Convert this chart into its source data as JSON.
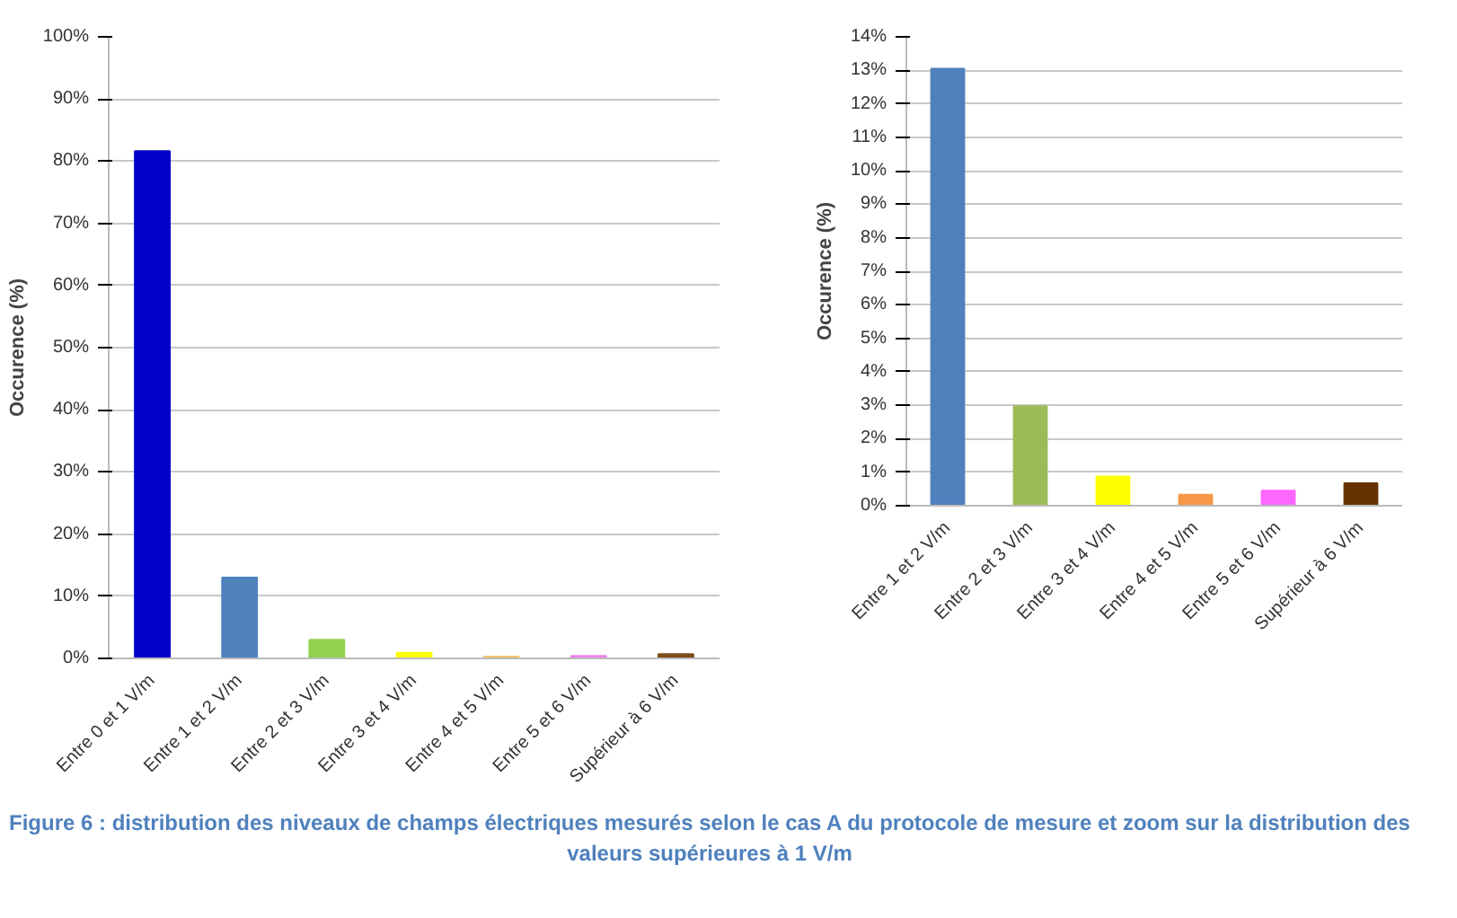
{
  "chart_data": [
    {
      "type": "bar",
      "ylabel": "Occurence (%)",
      "categories": [
        "Entre 0 et 1 V/m",
        "Entre 1 et 2 V/m",
        "Entre 2 et 3 V/m",
        "Entre 3 et 4 V/m",
        "Entre 4 et 5 V/m",
        "Entre 5 et 6 V/m",
        "Supérieur à 6 V/m"
      ],
      "values": [
        81.6,
        13,
        3,
        0.9,
        0.3,
        0.4,
        0.7
      ],
      "colors": [
        "#0000c8",
        "#4f81bd",
        "#92d050",
        "#ffff00",
        "#f7c26b",
        "#ee82ee",
        "#7f4b18"
      ],
      "ylim": [
        0,
        100
      ],
      "yticks": [
        {
          "value": 0,
          "label": "0%"
        },
        {
          "value": 10,
          "label": "10%"
        },
        {
          "value": 20,
          "label": "20%"
        },
        {
          "value": 30,
          "label": "30%"
        },
        {
          "value": 40,
          "label": "40%"
        },
        {
          "value": 50,
          "label": "50%"
        },
        {
          "value": 60,
          "label": "60%"
        },
        {
          "value": 70,
          "label": "70%"
        },
        {
          "value": 80,
          "label": "80%"
        },
        {
          "value": 90,
          "label": "90%"
        },
        {
          "value": 100,
          "label": "100%"
        }
      ],
      "grid": "y",
      "annotations": [
        "Figure 6 : distribution des niveaux de champs électriques mesurés selon le cas A du protocole de mesure et zoom sur la distribution des valeurs supérieures à 1 V/m"
      ]
    },
    {
      "type": "bar",
      "ylabel": "Occurence (%)",
      "categories": [
        "Entre 1 et 2 V/m",
        "Entre 2 et 3 V/m",
        "Entre 3 et 4 V/m",
        "Entre 4 et 5 V/m",
        "Entre 5 et 6 V/m",
        "Supérieur à 6 V/m"
      ],
      "values": [
        13.05,
        2.97,
        0.87,
        0.33,
        0.45,
        0.67
      ],
      "colors": [
        "#4f81bd",
        "#9bbb59",
        "#ffff00",
        "#f79646",
        "#ff66ff",
        "#663300"
      ],
      "ylim": [
        0,
        14
      ],
      "yticks": [
        {
          "value": 0,
          "label": "0%"
        },
        {
          "value": 1,
          "label": "1%"
        },
        {
          "value": 2,
          "label": "2%"
        },
        {
          "value": 3,
          "label": "3%"
        },
        {
          "value": 4,
          "label": "4%"
        },
        {
          "value": 5,
          "label": "5%"
        },
        {
          "value": 6,
          "label": "6%"
        },
        {
          "value": 7,
          "label": "7%"
        },
        {
          "value": 8,
          "label": "8%"
        },
        {
          "value": 9,
          "label": "9%"
        },
        {
          "value": 10,
          "label": "10%"
        },
        {
          "value": 11,
          "label": "11%"
        },
        {
          "value": 12,
          "label": "12%"
        },
        {
          "value": 13,
          "label": "13%"
        },
        {
          "value": 14,
          "label": "14%"
        }
      ],
      "grid": "y"
    }
  ]
}
